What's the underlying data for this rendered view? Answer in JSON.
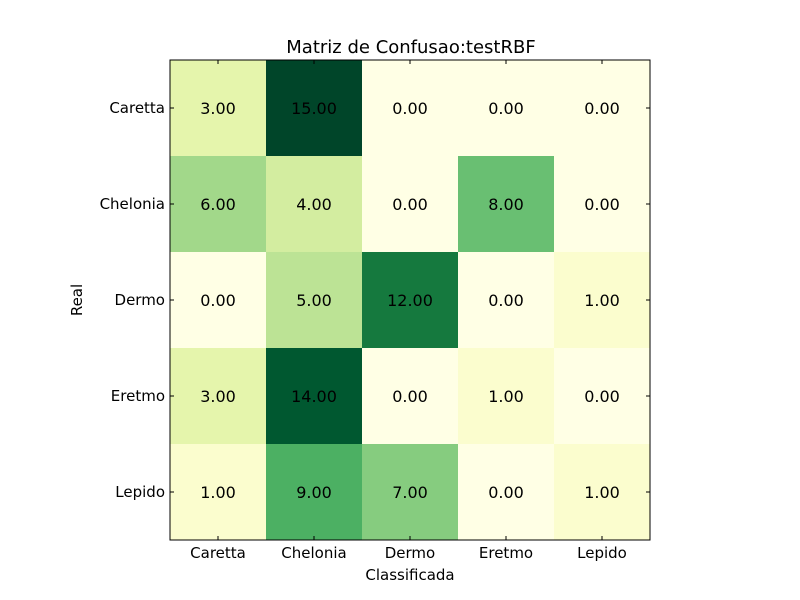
{
  "chart_data": {
    "type": "heatmap",
    "title": "Matriz de Confusao:testRBF",
    "xlabel": "Classificada",
    "ylabel": "Real",
    "x_categories": [
      "Caretta",
      "Chelonia",
      "Dermo",
      "Eretmo",
      "Lepido"
    ],
    "y_categories": [
      "Caretta",
      "Chelonia",
      "Dermo",
      "Eretmo",
      "Lepido"
    ],
    "values": [
      [
        3,
        15,
        0,
        0,
        0
      ],
      [
        6,
        4,
        0,
        8,
        0
      ],
      [
        0,
        5,
        12,
        0,
        1
      ],
      [
        3,
        14,
        0,
        1,
        0
      ],
      [
        1,
        9,
        7,
        0,
        1
      ]
    ],
    "value_labels": [
      [
        "3.00",
        "15.00",
        "0.00",
        "0.00",
        "0.00"
      ],
      [
        "6.00",
        "4.00",
        "0.00",
        "8.00",
        "0.00"
      ],
      [
        "0.00",
        "5.00",
        "12.00",
        "0.00",
        "1.00"
      ],
      [
        "3.00",
        "14.00",
        "0.00",
        "1.00",
        "0.00"
      ],
      [
        "1.00",
        "9.00",
        "7.00",
        "0.00",
        "1.00"
      ]
    ],
    "colormap": "YlGn",
    "color_range": [
      0,
      15
    ],
    "grid": false,
    "legend": "none"
  }
}
